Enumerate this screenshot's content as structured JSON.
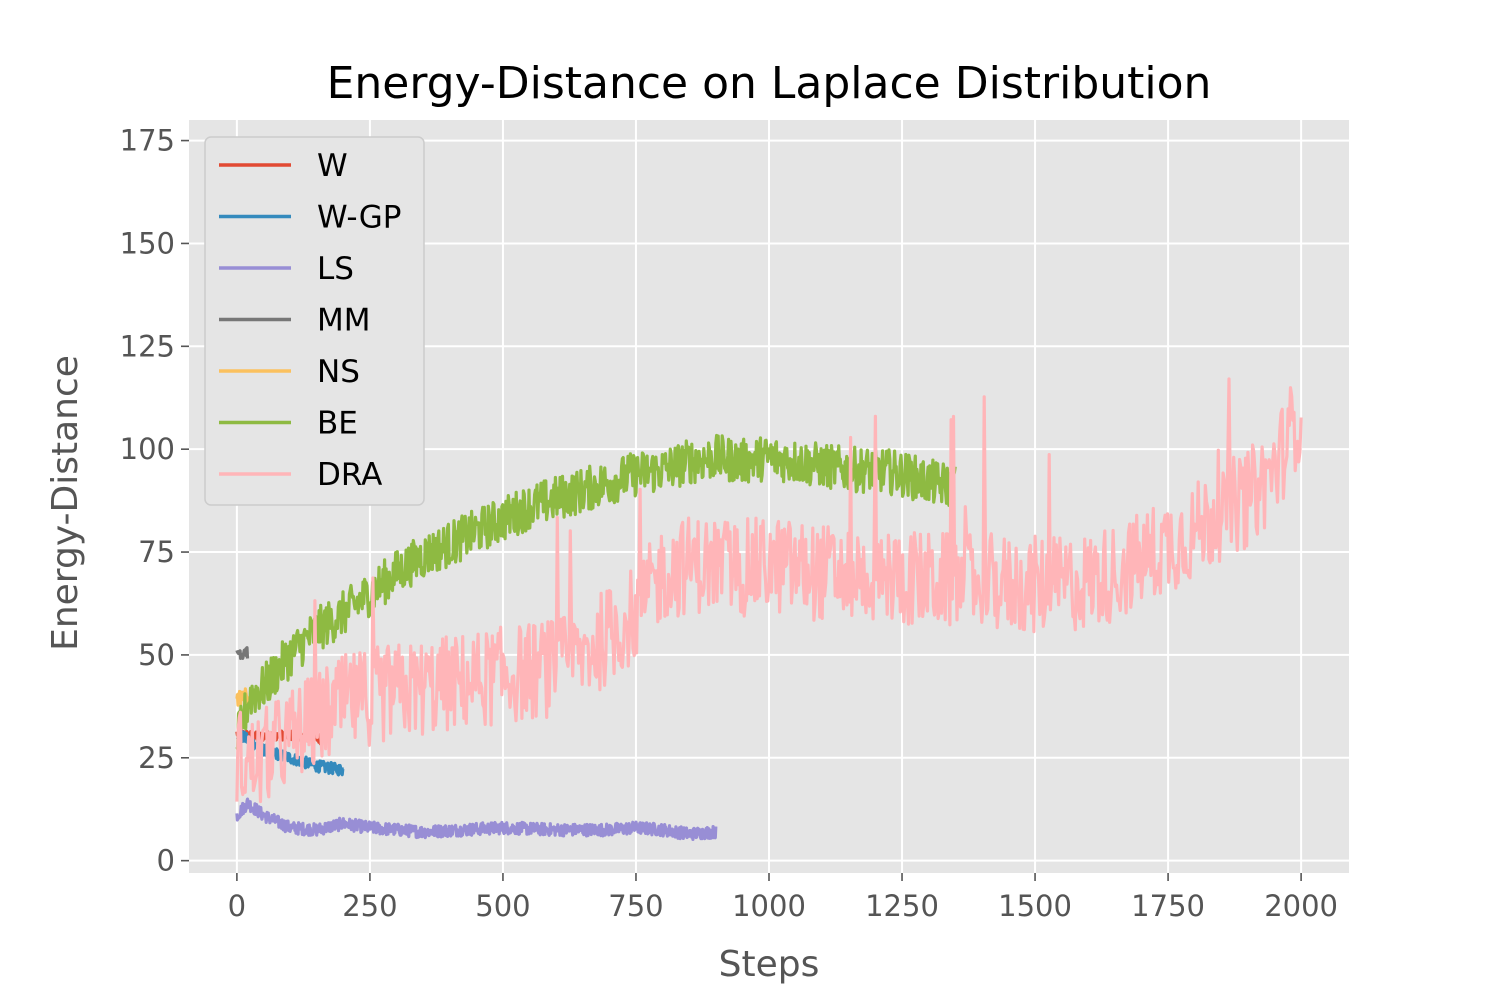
{
  "chart_data": {
    "type": "line",
    "title": "Energy-Distance on Laplace Distribution",
    "xlabel": "Steps",
    "ylabel": "Energy-Distance",
    "xlim": [
      -90,
      2090
    ],
    "ylim": [
      -3,
      180
    ],
    "xticks": [
      0,
      250,
      500,
      750,
      1000,
      1250,
      1500,
      1750,
      2000
    ],
    "yticks": [
      0,
      25,
      50,
      75,
      100,
      125,
      150,
      175
    ],
    "grid": true,
    "legend_position": "top-left",
    "series": [
      {
        "name": "W",
        "color": "#E24A33",
        "width": 3.2,
        "x": [
          0,
          20,
          40,
          60,
          80,
          100,
          120,
          140,
          160
        ],
        "y": [
          31,
          30.5,
          30,
          30.5,
          30.5,
          30.5,
          30,
          30,
          29.5
        ],
        "noise": 1.2
      },
      {
        "name": "W-GP",
        "color": "#348ABD",
        "width": 3.2,
        "x": [
          0,
          25,
          50,
          75,
          100,
          125,
          150,
          175,
          200
        ],
        "y": [
          31,
          29,
          27,
          26,
          25,
          24,
          23,
          22.5,
          22
        ],
        "noise": 1.4
      },
      {
        "name": "LS",
        "color": "#988ED5",
        "width": 3.2,
        "x": [
          0,
          20,
          50,
          100,
          150,
          200,
          250,
          350,
          500,
          600,
          700,
          750,
          800,
          850,
          900
        ],
        "y": [
          11,
          14,
          11,
          8,
          7.5,
          9,
          8,
          7,
          8,
          7.5,
          7.5,
          8,
          7.5,
          6.5,
          7
        ],
        "noise": 1.5
      },
      {
        "name": "MM",
        "color": "#777777",
        "width": 3.2,
        "x": [
          0,
          5,
          10,
          15,
          20
        ],
        "y": [
          50,
          51,
          50,
          51.5,
          50.5
        ],
        "noise": 1.5
      },
      {
        "name": "NS",
        "color": "#FBC15E",
        "width": 3.2,
        "x": [
          0,
          5,
          10,
          15,
          20
        ],
        "y": [
          38,
          40,
          39,
          40.5,
          38
        ],
        "noise": 2.0
      },
      {
        "name": "BE",
        "color": "#8EBA42",
        "width": 3.2,
        "x": [
          0,
          25,
          50,
          100,
          150,
          200,
          250,
          300,
          350,
          400,
          450,
          500,
          550,
          600,
          650,
          700,
          750,
          800,
          850,
          900,
          950,
          1000,
          1050,
          1100,
          1150,
          1200,
          1250,
          1300,
          1350
        ],
        "y": [
          29,
          40,
          42,
          50,
          56,
          60,
          65,
          70,
          74,
          77,
          80,
          83,
          86,
          88,
          90,
          92,
          94,
          95,
          97,
          98,
          97,
          98,
          97,
          96,
          95,
          95,
          94,
          92,
          91
        ],
        "noise": 5.5
      },
      {
        "name": "DRA",
        "color": "#FFB5B8",
        "width": 3.2,
        "x": [
          0,
          25,
          50,
          100,
          150,
          200,
          250,
          300,
          350,
          400,
          450,
          500,
          550,
          600,
          650,
          700,
          750,
          800,
          850,
          900,
          950,
          1000,
          1050,
          1100,
          1150,
          1200,
          1250,
          1300,
          1350,
          1400,
          1450,
          1500,
          1550,
          1600,
          1650,
          1700,
          1750,
          1800,
          1850,
          1900,
          1950,
          2000
        ],
        "y": [
          26,
          23,
          25,
          30,
          34,
          38,
          40,
          41,
          42,
          43,
          44,
          45,
          46,
          47,
          50,
          55,
          60,
          70,
          72,
          72,
          71,
          72,
          71,
          70,
          70,
          69,
          69,
          68,
          68,
          68,
          67,
          67,
          67,
          68,
          70,
          73,
          77,
          80,
          85,
          88,
          95,
          110
        ],
        "noise": 12
      }
    ]
  }
}
